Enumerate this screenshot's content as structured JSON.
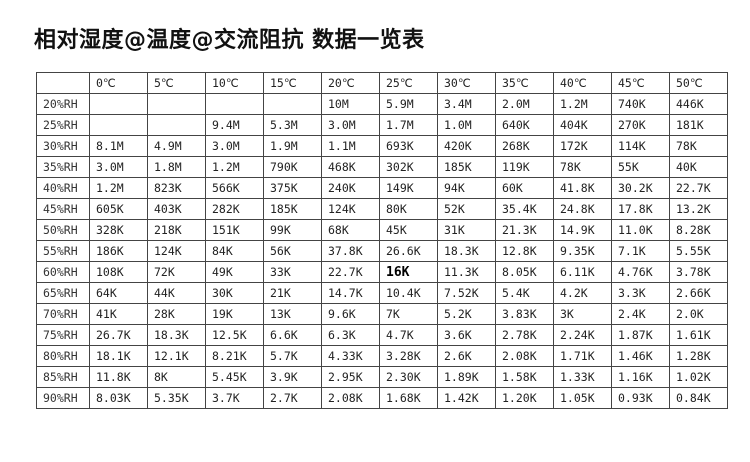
{
  "title": "相对湿度@温度@交流阻抗 数据一览表",
  "table": {
    "headers": [
      "",
      "0℃",
      "5℃",
      "10℃",
      "15℃",
      "20℃",
      "25℃",
      "30℃",
      "35℃",
      "40℃",
      "45℃",
      "50℃"
    ],
    "rows": [
      [
        "20%RH",
        "",
        "",
        "",
        "",
        "10M",
        "5.9M",
        "3.4M",
        "2.0M",
        "1.2M",
        "740K",
        "446K"
      ],
      [
        "25%RH",
        "",
        "",
        "9.4M",
        "5.3M",
        "3.0M",
        "1.7M",
        "1.0M",
        "640K",
        "404K",
        "270K",
        "181K"
      ],
      [
        "30%RH",
        "8.1M",
        "4.9M",
        "3.0M",
        "1.9M",
        "1.1M",
        "693K",
        "420K",
        "268K",
        "172K",
        "114K",
        "78K"
      ],
      [
        "35%RH",
        "3.0M",
        "1.8M",
        "1.2M",
        "790K",
        "468K",
        "302K",
        "185K",
        "119K",
        "78K",
        "55K",
        "40K"
      ],
      [
        "40%RH",
        "1.2M",
        "823K",
        "566K",
        "375K",
        "240K",
        "149K",
        "94K",
        "60K",
        "41.8K",
        "30.2K",
        "22.7K"
      ],
      [
        "45%RH",
        "605K",
        "403K",
        "282K",
        "185K",
        "124K",
        "80K",
        "52K",
        "35.4K",
        "24.8K",
        "17.8K",
        "13.2K"
      ],
      [
        "50%RH",
        "328K",
        "218K",
        "151K",
        "99K",
        "68K",
        "45K",
        "31K",
        "21.3K",
        "14.9K",
        "11.0K",
        "8.28K"
      ],
      [
        "55%RH",
        "186K",
        "124K",
        "84K",
        "56K",
        "37.8K",
        "26.6K",
        "18.3K",
        "12.8K",
        "9.35K",
        "7.1K",
        "5.55K"
      ],
      [
        "60%RH",
        "108K",
        "72K",
        "49K",
        "33K",
        "22.7K",
        "16K",
        "11.3K",
        "8.05K",
        "6.11K",
        "4.76K",
        "3.78K"
      ],
      [
        "65%RH",
        "64K",
        "44K",
        "30K",
        "21K",
        "14.7K",
        "10.4K",
        "7.52K",
        "5.4K",
        "4.2K",
        "3.3K",
        "2.66K"
      ],
      [
        "70%RH",
        "41K",
        "28K",
        "19K",
        "13K",
        "9.6K",
        "7K",
        "5.2K",
        "3.83K",
        "3K",
        "2.4K",
        "2.0K"
      ],
      [
        "75%RH",
        "26.7K",
        "18.3K",
        "12.5K",
        "6.6K",
        "6.3K",
        "4.7K",
        "3.6K",
        "2.78K",
        "2.24K",
        "1.87K",
        "1.61K"
      ],
      [
        "80%RH",
        "18.1K",
        "12.1K",
        "8.21K",
        "5.7K",
        "4.33K",
        "3.28K",
        "2.6K",
        "2.08K",
        "1.71K",
        "1.46K",
        "1.28K"
      ],
      [
        "85%RH",
        "11.8K",
        "8K",
        "5.45K",
        "3.9K",
        "2.95K",
        "2.30K",
        "1.89K",
        "1.58K",
        "1.33K",
        "1.16K",
        "1.02K"
      ],
      [
        "90%RH",
        "8.03K",
        "5.35K",
        "3.7K",
        "2.7K",
        "2.08K",
        "1.68K",
        "1.42K",
        "1.20K",
        "1.05K",
        "0.93K",
        "0.84K"
      ]
    ],
    "highlighted_cell": "60%RH @ 25℃"
  }
}
